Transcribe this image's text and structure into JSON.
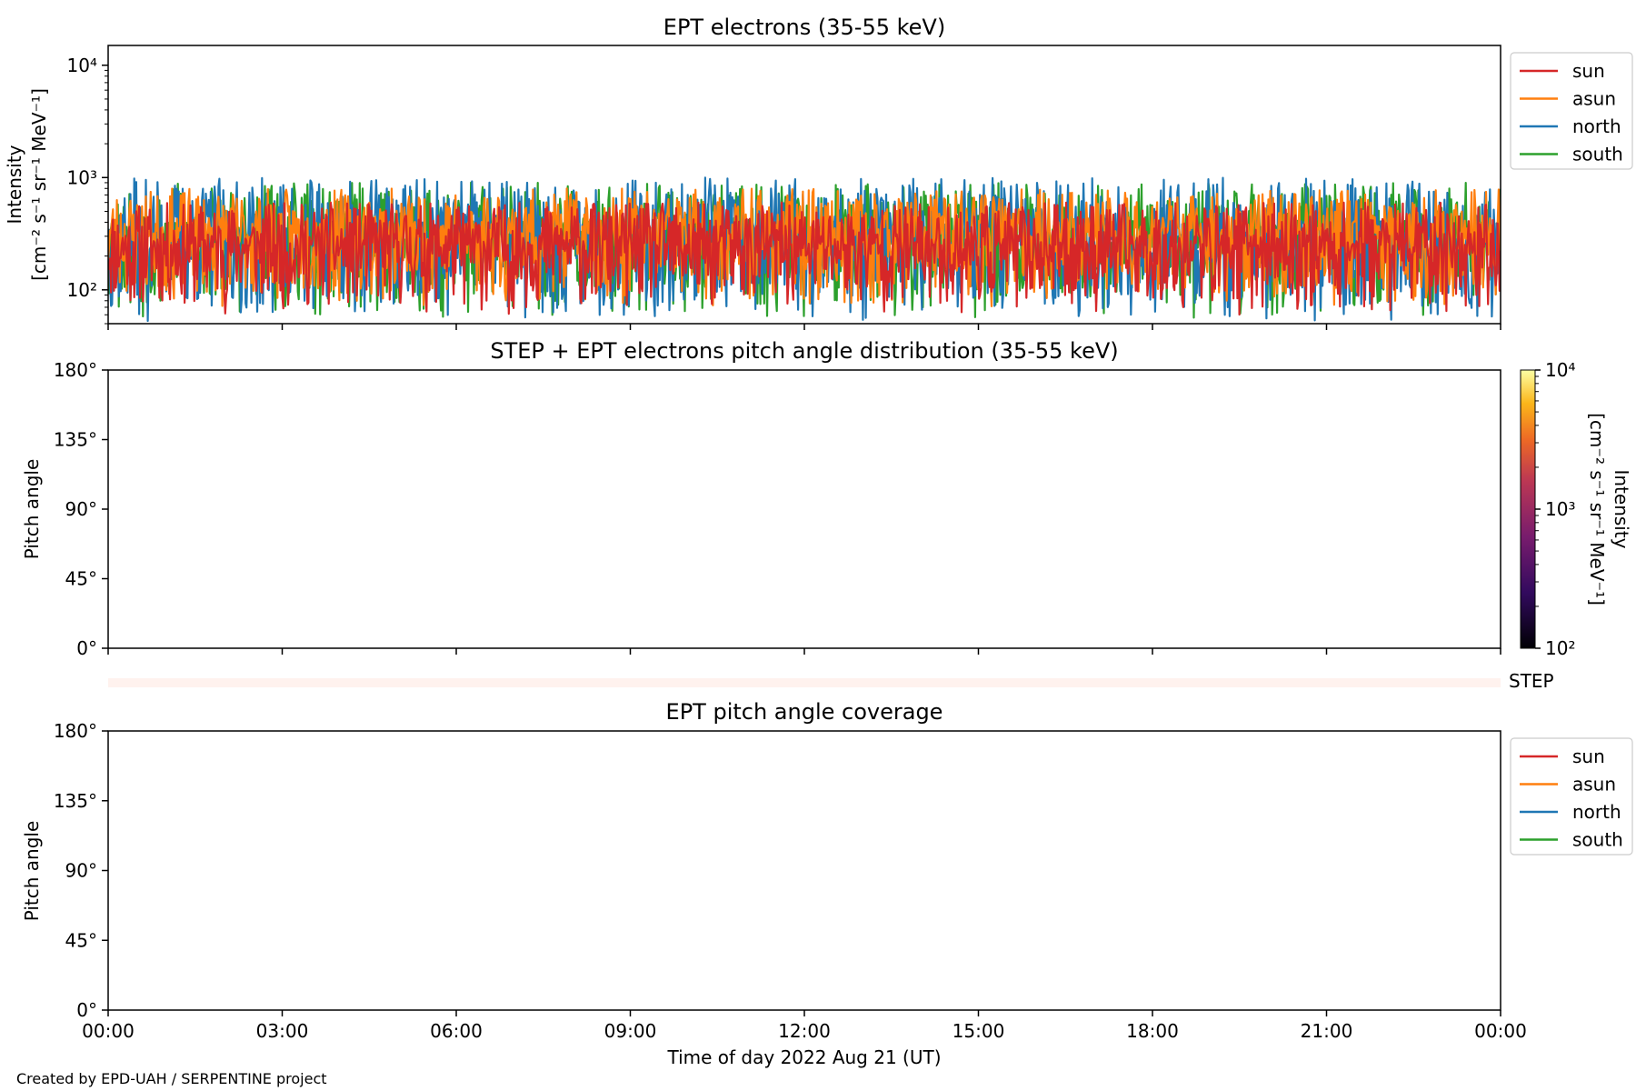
{
  "colors": {
    "sun": "#d62728",
    "asun": "#ff7f0e",
    "north": "#1f77b4",
    "south": "#2ca02c",
    "step_bar": "#fff2ee"
  },
  "chart_data": [
    {
      "type": "line",
      "title": "EPT electrons (35-55 keV)",
      "ylabel_line1": "Intensity",
      "ylabel_line2": "[cm⁻² s⁻¹ sr⁻¹ MeV⁻¹]",
      "yscale": "log",
      "ylim": [
        50,
        15000
      ],
      "yticks": [
        {
          "value": 100,
          "label": "10²"
        },
        {
          "value": 1000,
          "label": "10³"
        },
        {
          "value": 10000,
          "label": "10⁴"
        }
      ],
      "xlim": [
        "2022-08-21 00:00",
        "2022-08-22 00:00"
      ],
      "legend": {
        "placement": "outside-right",
        "entries": [
          "sun",
          "asun",
          "north",
          "south"
        ]
      },
      "series": [
        {
          "name": "sun",
          "typical_range": [
            60,
            600
          ],
          "median": 250
        },
        {
          "name": "asun",
          "typical_range": [
            70,
            800
          ],
          "median": 320
        },
        {
          "name": "north",
          "typical_range": [
            50,
            1000
          ],
          "median": 280
        },
        {
          "name": "south",
          "typical_range": [
            50,
            900
          ],
          "median": 300
        }
      ],
      "n_points": 1440
    },
    {
      "type": "heatmap",
      "title": "STEP + EPT electrons pitch angle distribution (35-55 keV)",
      "ylabel": "Pitch angle",
      "ylim": [
        0,
        180
      ],
      "yticks": [
        "0°",
        "45°",
        "90°",
        "135°",
        "180°"
      ],
      "colorbar": {
        "label_line1": "Intensity",
        "label_line2": "[cm⁻² s⁻¹ sr⁻¹ MeV⁻¹]",
        "scale": "log",
        "range": [
          100,
          10000
        ],
        "ticks": [
          "10²",
          "10³",
          "10⁴"
        ],
        "colormap": "inferno"
      },
      "values": []
    },
    {
      "type": "heatmap",
      "label": "STEP",
      "values": []
    },
    {
      "type": "line",
      "title": "EPT pitch angle coverage",
      "ylabel": "Pitch angle",
      "ylim": [
        0,
        180
      ],
      "yticks": [
        "0°",
        "45°",
        "90°",
        "135°",
        "180°"
      ],
      "legend": {
        "placement": "outside-right",
        "entries": [
          "sun",
          "asun",
          "north",
          "south"
        ]
      },
      "series": []
    }
  ],
  "xaxis": {
    "ticks": [
      "00:00",
      "03:00",
      "06:00",
      "09:00",
      "12:00",
      "15:00",
      "18:00",
      "21:00",
      "00:00"
    ],
    "label": "Time of day 2022 Aug 21 (UT)"
  },
  "footer": "Created by EPD-UAH / SERPENTINE project"
}
